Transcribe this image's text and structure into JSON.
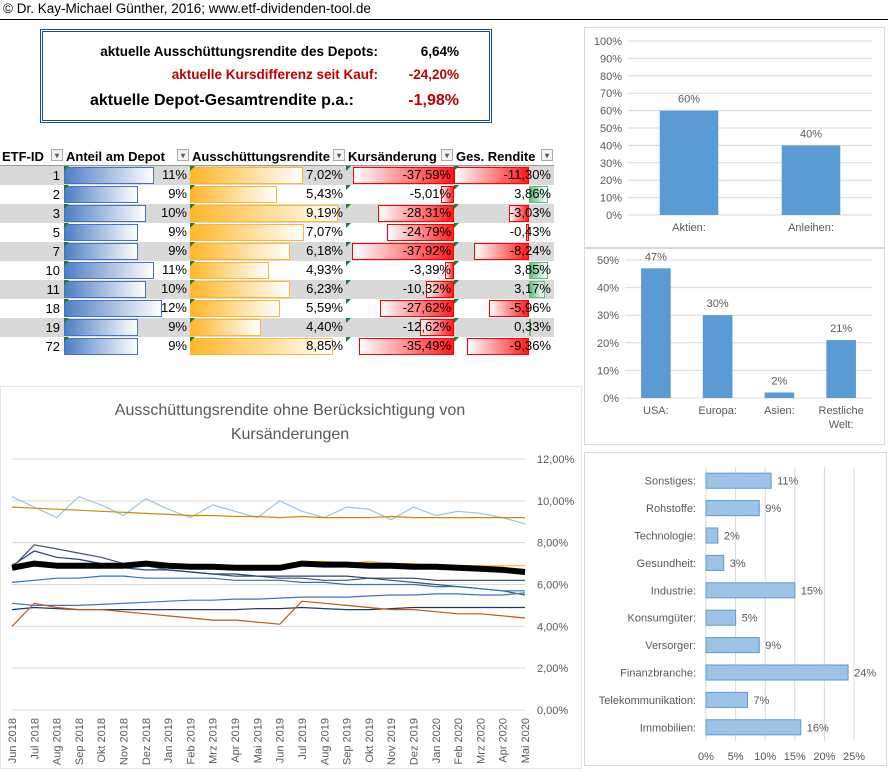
{
  "header": {
    "copyright": "© Dr. Kay-Michael Günther, 2016; www.etf-dividenden-tool.de"
  },
  "summary": {
    "r1_label": "aktuelle Ausschüttungsrendite des Depots:",
    "r1_value": "6,64%",
    "r2_label": "aktuelle Kursdifferenz seit Kauf:",
    "r2_value": "-24,20%",
    "r3_label": "aktuelle Depot-Gesamtrendite p.a.:",
    "r3_value": "-1,98%",
    "positive_color": "#000000",
    "negative_color": "#c00000"
  },
  "table": {
    "headers": [
      "ETF-ID",
      "Anteil am Depot",
      "Ausschüttungsrendite",
      "Kursänderung",
      "Ges. Rendite"
    ],
    "rows": [
      {
        "id": "1",
        "anteil": "11%",
        "anteil_v": 11,
        "aus": "7,02%",
        "aus_v": 7.02,
        "kurs": "-37,59%",
        "kurs_v": -37.59,
        "ges": "-11,30%",
        "ges_v": -11.3
      },
      {
        "id": "2",
        "anteil": "9%",
        "anteil_v": 9,
        "aus": "5,43%",
        "aus_v": 5.43,
        "kurs": "-5,01%",
        "kurs_v": -5.01,
        "ges": "3,86%",
        "ges_v": 3.86
      },
      {
        "id": "3",
        "anteil": "10%",
        "anteil_v": 10,
        "aus": "9,19%",
        "aus_v": 9.19,
        "kurs": "-28,31%",
        "kurs_v": -28.31,
        "ges": "-3,03%",
        "ges_v": -3.03
      },
      {
        "id": "5",
        "anteil": "9%",
        "anteil_v": 9,
        "aus": "7,07%",
        "aus_v": 7.07,
        "kurs": "-24,79%",
        "kurs_v": -24.79,
        "ges": "-0,43%",
        "ges_v": -0.43
      },
      {
        "id": "7",
        "anteil": "9%",
        "anteil_v": 9,
        "aus": "6,18%",
        "aus_v": 6.18,
        "kurs": "-37,92%",
        "kurs_v": -37.92,
        "ges": "-8,24%",
        "ges_v": -8.24
      },
      {
        "id": "10",
        "anteil": "11%",
        "anteil_v": 11,
        "aus": "4,93%",
        "aus_v": 4.93,
        "kurs": "-3,39%",
        "kurs_v": -3.39,
        "ges": "3,85%",
        "ges_v": 3.85
      },
      {
        "id": "11",
        "anteil": "10%",
        "anteil_v": 10,
        "aus": "6,23%",
        "aus_v": 6.23,
        "kurs": "-10,32%",
        "kurs_v": -10.32,
        "ges": "3,17%",
        "ges_v": 3.17
      },
      {
        "id": "18",
        "anteil": "12%",
        "anteil_v": 12,
        "aus": "5,59%",
        "aus_v": 5.59,
        "kurs": "-27,62%",
        "kurs_v": -27.62,
        "ges": "-5,96%",
        "ges_v": -5.96
      },
      {
        "id": "19",
        "anteil": "9%",
        "anteil_v": 9,
        "aus": "4,40%",
        "aus_v": 4.4,
        "kurs": "-12,62%",
        "kurs_v": -12.62,
        "ges": "0,33%",
        "ges_v": 0.33
      },
      {
        "id": "72",
        "anteil": "9%",
        "anteil_v": 9,
        "aus": "8,85%",
        "aus_v": 8.85,
        "kurs": "-35,49%",
        "kurs_v": -35.49,
        "ges": "-9,36%",
        "ges_v": -9.36
      }
    ],
    "bar_colors": {
      "blue": "#4472c4",
      "orange": "#ffb628",
      "red": "#ff0000",
      "green": "#63be7b"
    }
  },
  "chart_data": [
    {
      "type": "bar",
      "title": "",
      "categories": [
        "Aktien:",
        "Anleihen:"
      ],
      "values": [
        60,
        40
      ],
      "labels": [
        "60%",
        "40%"
      ],
      "ylim": [
        0,
        100
      ],
      "yticks": [
        "0%",
        "10%",
        "20%",
        "30%",
        "40%",
        "50%",
        "60%",
        "70%",
        "80%",
        "90%",
        "100%"
      ],
      "color": "#5b9bd5"
    },
    {
      "type": "bar",
      "title": "",
      "categories": [
        "USA:",
        "Europa:",
        "Asien:",
        "Restliche Welt:"
      ],
      "values": [
        47,
        30,
        2,
        21
      ],
      "labels": [
        "47%",
        "30%",
        "2%",
        "21%"
      ],
      "ylim": [
        0,
        50
      ],
      "yticks": [
        "0%",
        "10%",
        "20%",
        "30%",
        "40%",
        "50%"
      ],
      "color": "#5b9bd5"
    },
    {
      "type": "bar",
      "orientation": "horizontal",
      "title": "",
      "categories": [
        "Sonstiges:",
        "Rohstoffe:",
        "Technologie:",
        "Gesundheit:",
        "Industrie:",
        "Konsumgüter:",
        "Versorger:",
        "Finanzbranche:",
        "Telekommunikation:",
        "Immobilien:"
      ],
      "values": [
        11,
        9,
        2,
        3,
        15,
        5,
        9,
        24,
        7,
        16
      ],
      "labels": [
        "11%",
        "9%",
        "2%",
        "3%",
        "15%",
        "5%",
        "9%",
        "24%",
        "7%",
        "16%"
      ],
      "xlim": [
        0,
        25
      ],
      "xticks": [
        "0%",
        "5%",
        "10%",
        "15%",
        "20%",
        "25%"
      ],
      "color": "#9dc3e6"
    },
    {
      "type": "line",
      "title": "Ausschüttungsrendite ohne Berücksichtigung von Kursänderungen",
      "x": [
        "Jun 2018",
        "Jul 2018",
        "Aug 2018",
        "Sep 2018",
        "Okt 2018",
        "Nov 2018",
        "Dez 2018",
        "Jan 2019",
        "Feb 2019",
        "Mrz 2019",
        "Apr 2019",
        "Mai 2019",
        "Jun 2019",
        "Jul 2019",
        "Aug 2019",
        "Sep 2019",
        "Okt 2019",
        "Nov 2019",
        "Dez 2019",
        "Jan 2020",
        "Feb 2020",
        "Mrz 2020",
        "Apr 2020",
        "Mai 2020"
      ],
      "ylim": [
        0,
        12
      ],
      "yticks": [
        "0,00%",
        "2,00%",
        "4,00%",
        "6,00%",
        "8,00%",
        "10,00%",
        "12,00%"
      ],
      "series": [
        {
          "color": "#9dc3e6",
          "width": 1.2,
          "values": [
            10.2,
            9.7,
            9.2,
            10.2,
            9.8,
            9.3,
            10.1,
            9.6,
            9.2,
            9.8,
            9.5,
            9.2,
            10.0,
            9.5,
            9.2,
            9.7,
            9.6,
            9.1,
            9.7,
            9.3,
            9.5,
            9.4,
            9.2,
            8.9
          ]
        },
        {
          "color": "#bf9000",
          "width": 1.2,
          "values": [
            9.7,
            9.65,
            9.6,
            9.55,
            9.5,
            9.45,
            9.4,
            9.35,
            9.3,
            9.3,
            9.25,
            9.25,
            9.2,
            9.25,
            9.2,
            9.2,
            9.2,
            9.25,
            9.2,
            9.2,
            9.2,
            9.2,
            9.2,
            9.2
          ]
        },
        {
          "color": "#44546a",
          "width": 1.2,
          "values": [
            6.8,
            7.9,
            7.7,
            7.5,
            7.3,
            7.0,
            6.9,
            6.7,
            6.6,
            6.5,
            6.4,
            6.4,
            6.3,
            6.3,
            6.2,
            6.2,
            6.3,
            6.2,
            6.1,
            6.0,
            5.9,
            5.8,
            5.7,
            5.5
          ]
        },
        {
          "color": "#ffc000",
          "width": 1.2,
          "values": [
            7.0,
            6.9,
            6.8,
            6.8,
            6.9,
            7.0,
            7.1,
            7.0,
            6.9,
            6.9,
            6.9,
            6.9,
            6.9,
            7.1,
            7.1,
            7.0,
            7.1,
            7.0,
            7.0,
            6.9,
            6.9,
            6.9,
            6.9,
            6.9
          ]
        },
        {
          "color": "#264478",
          "width": 1.2,
          "values": [
            6.9,
            7.6,
            7.3,
            7.2,
            7.0,
            6.8,
            6.7,
            6.7,
            6.6,
            6.5,
            6.5,
            6.4,
            6.4,
            6.4,
            6.4,
            6.4,
            6.3,
            6.3,
            6.3,
            6.2,
            6.2,
            6.2,
            6.2,
            6.2
          ]
        },
        {
          "color": "#4472c4",
          "width": 1.2,
          "values": [
            5.1,
            5.0,
            5.0,
            5.0,
            5.05,
            5.1,
            5.15,
            5.2,
            5.25,
            5.25,
            5.3,
            5.3,
            5.35,
            5.4,
            5.4,
            5.4,
            5.45,
            5.5,
            5.5,
            5.55,
            5.55,
            5.5,
            5.5,
            5.6
          ]
        },
        {
          "color": "#2e75b6",
          "width": 1.2,
          "values": [
            6.1,
            6.2,
            6.3,
            6.3,
            6.4,
            6.4,
            6.3,
            6.3,
            6.3,
            6.3,
            6.2,
            6.2,
            6.2,
            6.1,
            6.1,
            6.0,
            6.0,
            6.0,
            6.0,
            5.9,
            5.9,
            5.8,
            5.7,
            5.7
          ]
        },
        {
          "color": "#203864",
          "width": 1.2,
          "values": [
            4.8,
            4.9,
            4.85,
            4.8,
            4.8,
            4.8,
            4.8,
            4.8,
            4.8,
            4.8,
            4.8,
            4.85,
            4.85,
            4.9,
            4.85,
            4.8,
            4.8,
            4.85,
            4.9,
            4.9,
            4.9,
            4.9,
            4.9,
            4.9
          ]
        },
        {
          "color": "#c55a11",
          "width": 1.2,
          "values": [
            4.0,
            5.1,
            4.9,
            4.8,
            4.8,
            4.7,
            4.6,
            4.5,
            4.4,
            4.3,
            4.3,
            4.2,
            4.1,
            5.2,
            5.1,
            5.0,
            4.9,
            4.8,
            4.8,
            4.7,
            4.6,
            4.6,
            4.5,
            4.4
          ]
        },
        {
          "color": "#000000",
          "width": 6,
          "values": [
            6.8,
            7.0,
            6.9,
            6.9,
            6.9,
            6.9,
            7.0,
            6.9,
            6.85,
            6.85,
            6.8,
            6.8,
            6.8,
            7.0,
            6.95,
            6.95,
            6.9,
            6.9,
            6.85,
            6.85,
            6.8,
            6.75,
            6.7,
            6.6
          ]
        }
      ]
    }
  ]
}
